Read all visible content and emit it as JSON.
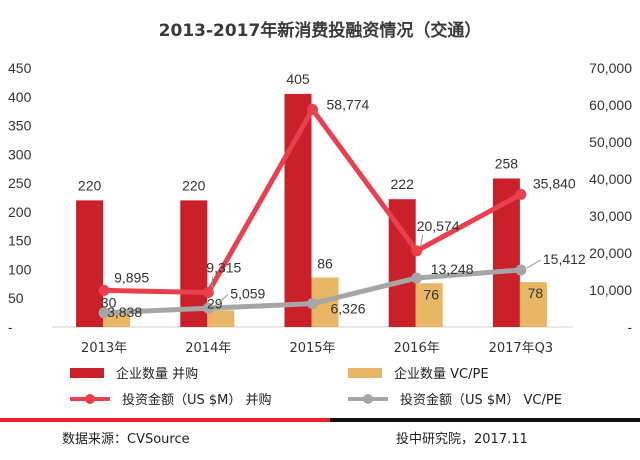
{
  "chart_data": {
    "type": "bar",
    "title": "2013-2017年新消费投融资情况（交通）",
    "categories": [
      "2013年",
      "2014年",
      "2015年",
      "2016年",
      "2017年Q3"
    ],
    "ylim_left": [
      0,
      450
    ],
    "yticks_left": [
      "-",
      "50",
      "100",
      "150",
      "200",
      "250",
      "300",
      "350",
      "400",
      "450"
    ],
    "ylim_right": [
      0,
      70000
    ],
    "yticks_right": [
      "-",
      "10,000",
      "20,000",
      "30,000",
      "40,000",
      "50,000",
      "60,000",
      "70,000"
    ],
    "series": [
      {
        "name": "企业数量 并购",
        "kind": "bar",
        "axis": "left",
        "color": "#c9202a",
        "values": [
          220,
          220,
          405,
          222,
          258
        ],
        "labels": [
          "220",
          "220",
          "405",
          "222",
          "258"
        ]
      },
      {
        "name": "企业数量 VC/PE",
        "kind": "bar",
        "axis": "left",
        "color": "#e8b766",
        "values": [
          30,
          29,
          86,
          76,
          78
        ],
        "labels": [
          "30",
          "29",
          "86",
          "76",
          "78"
        ]
      },
      {
        "name": "投资金额（US $M） 并购",
        "kind": "line",
        "axis": "right",
        "color": "#e8404f",
        "values": [
          9895,
          9315,
          58774,
          20574,
          35840
        ],
        "labels": [
          "9,895",
          "9,315",
          "58,774",
          "20,574",
          "35,840"
        ]
      },
      {
        "name": "投资金额（US $M） VC/PE",
        "kind": "line",
        "axis": "right",
        "color": "#a6a6a6",
        "values": [
          3838,
          5059,
          6326,
          13248,
          15412
        ],
        "labels": [
          "3,838",
          "5,059",
          "6,326",
          "13,248",
          "15,412"
        ]
      }
    ]
  },
  "footer": {
    "source": "数据来源：CVSource",
    "credit": "投中研究院，2017.11"
  },
  "colors": {
    "rule_left": "#e8202a",
    "rule_right": "#111111"
  }
}
